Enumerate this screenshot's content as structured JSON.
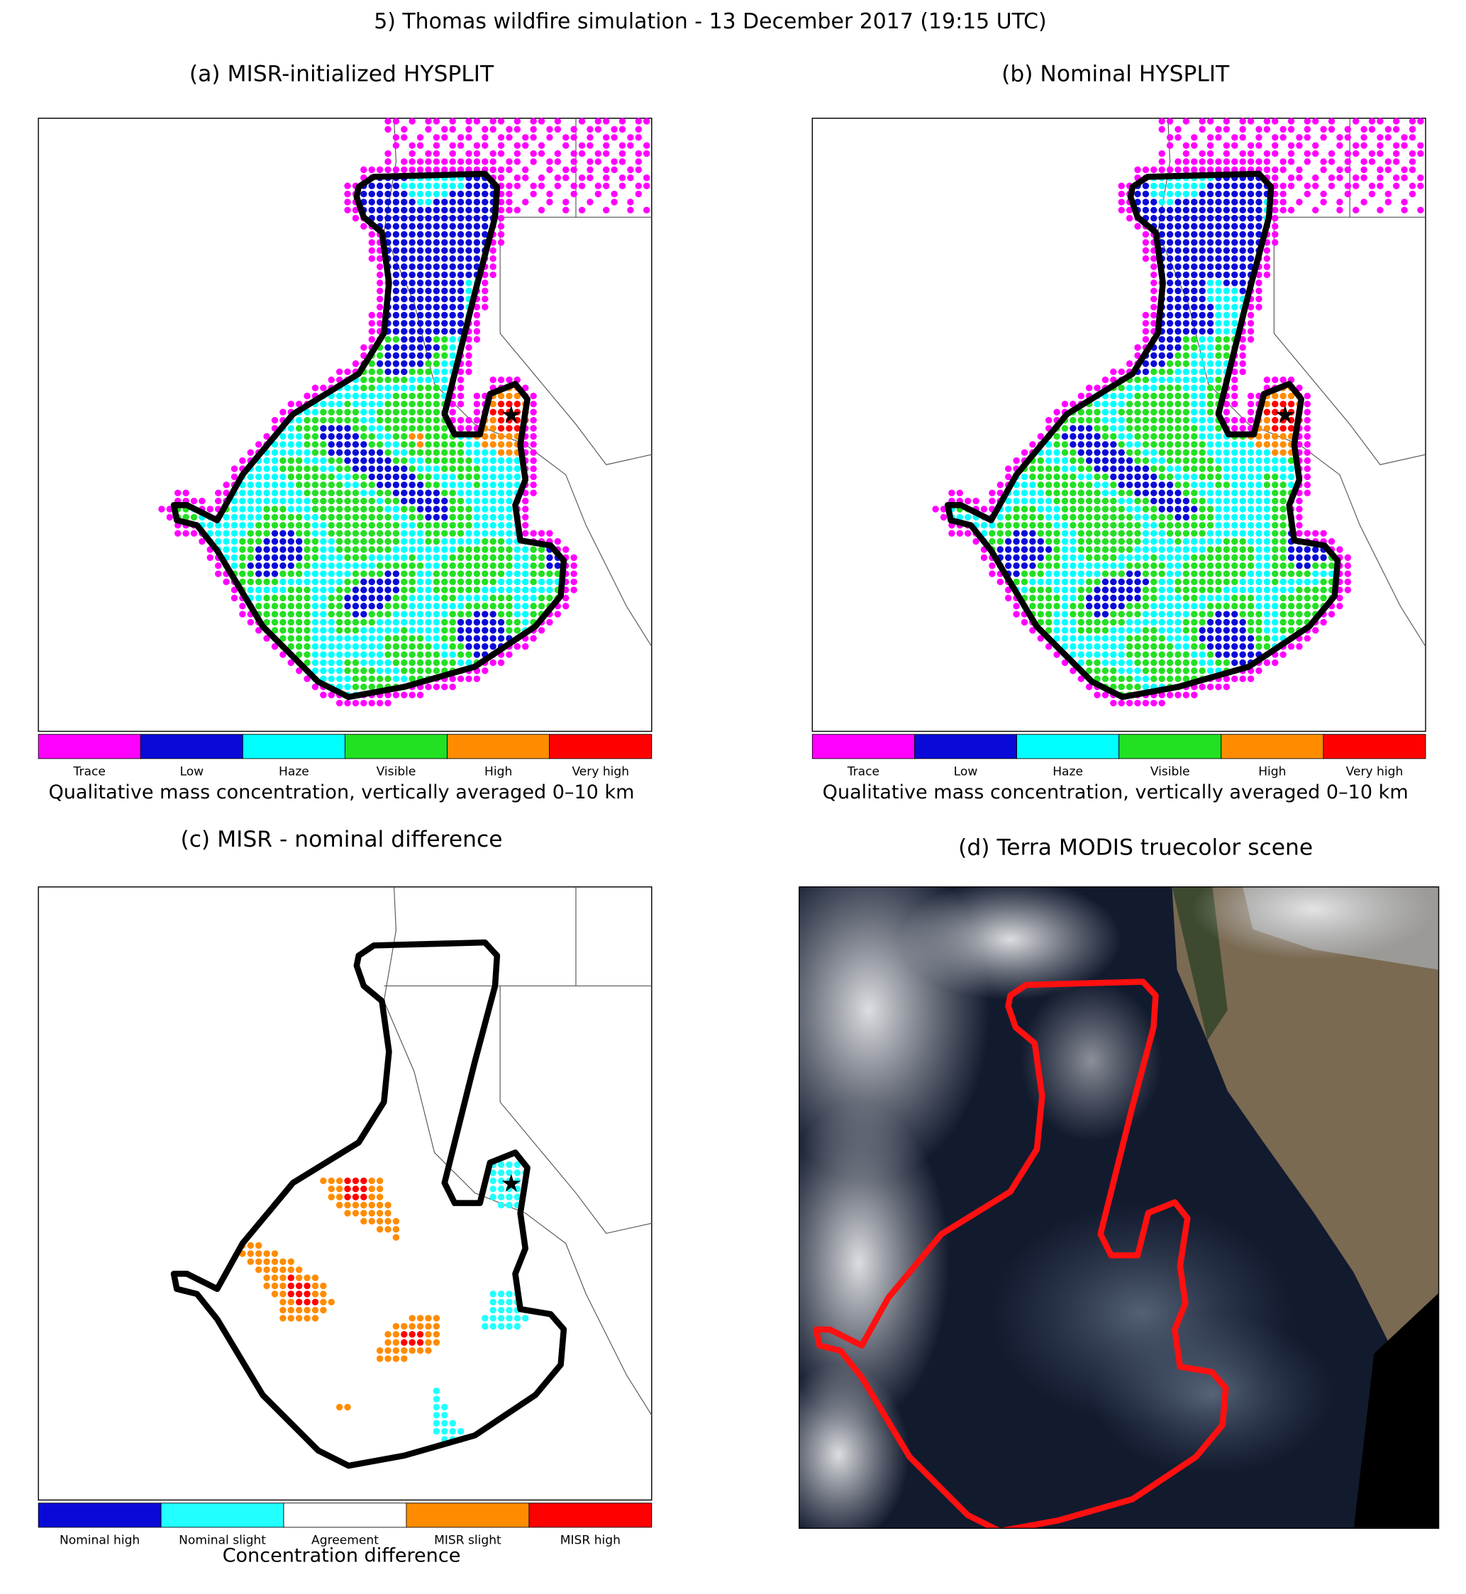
{
  "title": "5) Thomas wildfire simulation -   13 December 2017 (19:15 UTC)",
  "panels": [
    {
      "title": "(a) MISR-initialized HYSPLIT",
      "legend": {
        "categories": [
          "Trace",
          "Low",
          "Haze",
          "Visible",
          "High",
          "Very high"
        ],
        "colors": [
          "#ff00ff",
          "#0a0ad8",
          "#00ffff",
          "#22e022",
          "#ff8c00",
          "#ff0000"
        ],
        "caption": "Qualitative mass concentration, vertically averaged 0–10 km"
      }
    },
    {
      "title": "(b) Nominal HYSPLIT",
      "legend": {
        "categories": [
          "Trace",
          "Low",
          "Haze",
          "Visible",
          "High",
          "Very high"
        ],
        "colors": [
          "#ff00ff",
          "#0a0ad8",
          "#00ffff",
          "#22e022",
          "#ff8c00",
          "#ff0000"
        ],
        "caption": "Qualitative mass concentration, vertically averaged 0–10 km"
      }
    },
    {
      "title": "(c) MISR - nominal difference",
      "legend": {
        "categories": [
          "Nominal high",
          "Nominal slight",
          "Agreement",
          "MISR slight",
          "MISR high"
        ],
        "colors": [
          "#0a0ad8",
          "#22ffff",
          "#ffffff",
          "#ff8c00",
          "#ff0000"
        ],
        "caption": "Concentration difference"
      }
    },
    {
      "title": "(d) Terra MODIS truecolor scene"
    }
  ]
}
